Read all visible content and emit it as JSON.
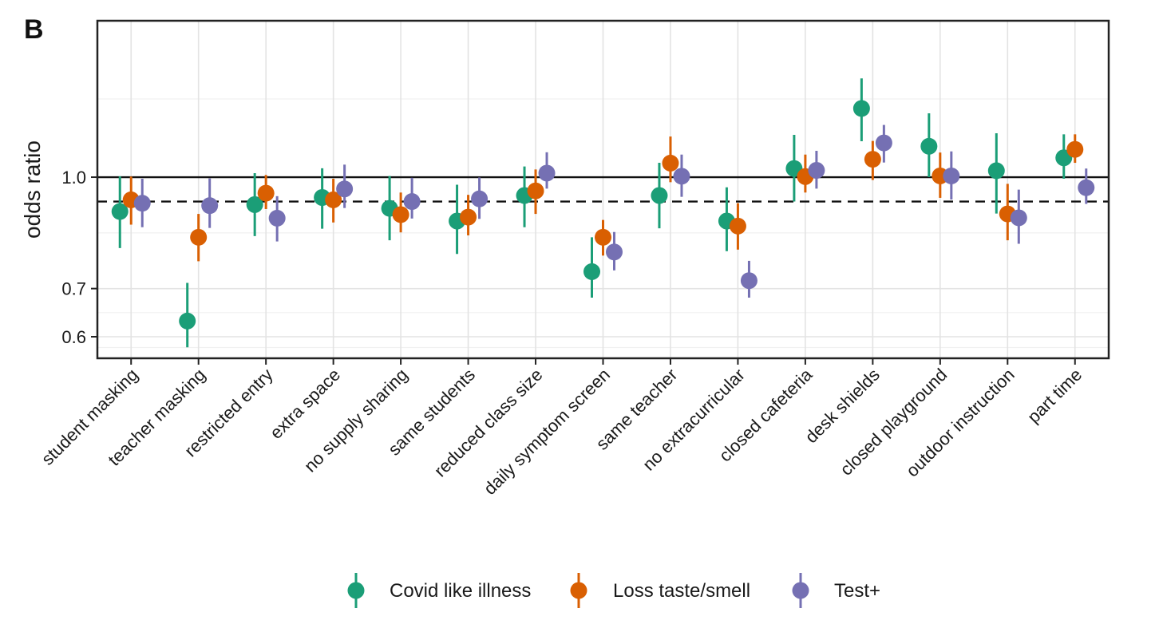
{
  "panel_label": "B",
  "chart_data": {
    "type": "scatter",
    "ylabel": "odds ratio",
    "xlabel": "",
    "y_scale": "log",
    "ylim": [
      0.56,
      1.65
    ],
    "y_ticks": [
      0.6,
      0.7,
      1.0
    ],
    "y_tick_labels": [
      "0.6",
      "0.7",
      "1.0"
    ],
    "reference_lines": [
      {
        "value": 1.0,
        "style": "solid"
      },
      {
        "value": 0.925,
        "style": "dashed"
      }
    ],
    "grid": true,
    "legend_position": "bottom",
    "categories": [
      "student masking",
      "teacher masking",
      "restricted entry",
      "extra space",
      "no supply sharing",
      "same students",
      "reduced class size",
      "daily symptom screen",
      "same teacher",
      "no extracurricular",
      "closed cafeteria",
      "desk shields",
      "closed playground",
      "outdoor instruction",
      "part time"
    ],
    "series": [
      {
        "name": "Covid like illness",
        "color": "#1b9e77",
        "estimates": [
          0.896,
          0.631,
          0.916,
          0.937,
          0.905,
          0.869,
          0.943,
          0.739,
          0.943,
          0.869,
          1.028,
          1.246,
          1.104,
          1.021,
          1.064
        ],
        "lower": [
          0.797,
          0.58,
          0.828,
          0.848,
          0.817,
          0.782,
          0.852,
          0.68,
          0.849,
          0.789,
          0.925,
          1.122,
          1.0,
          0.89,
          0.995
        ],
        "upper": [
          1.003,
          0.713,
          1.013,
          1.029,
          1.004,
          0.976,
          1.035,
          0.825,
          1.047,
          0.968,
          1.145,
          1.372,
          1.227,
          1.151,
          1.147
        ]
      },
      {
        "name": "Loss taste/smell",
        "color": "#d95f02",
        "estimates": [
          0.93,
          0.825,
          0.95,
          0.93,
          0.887,
          0.88,
          0.957,
          0.825,
          1.046,
          0.855,
          1.002,
          1.059,
          1.004,
          0.889,
          1.093
        ],
        "lower": [
          0.859,
          0.764,
          0.903,
          0.865,
          0.838,
          0.83,
          0.889,
          0.778,
          0.984,
          0.793,
          0.952,
          0.991,
          0.936,
          0.817,
          1.047
        ],
        "upper": [
          1.002,
          0.889,
          1.007,
          0.995,
          0.952,
          0.945,
          1.025,
          0.872,
          1.139,
          0.92,
          1.075,
          1.123,
          1.082,
          0.979,
          1.147
        ]
      },
      {
        "name": "Test+",
        "color": "#7570b3",
        "estimates": [
          0.92,
          0.913,
          0.877,
          0.963,
          0.925,
          0.933,
          1.013,
          0.787,
          1.003,
          0.718,
          1.022,
          1.116,
          1.004,
          0.878,
          0.967
        ],
        "lower": [
          0.852,
          0.85,
          0.814,
          0.906,
          0.876,
          0.875,
          0.964,
          0.742,
          0.939,
          0.68,
          0.964,
          1.048,
          0.931,
          0.808,
          0.918
        ],
        "upper": [
          0.995,
          0.996,
          0.941,
          1.041,
          0.998,
          0.999,
          1.083,
          0.839,
          1.075,
          0.765,
          1.088,
          1.182,
          1.086,
          0.961,
          1.028
        ]
      }
    ]
  }
}
